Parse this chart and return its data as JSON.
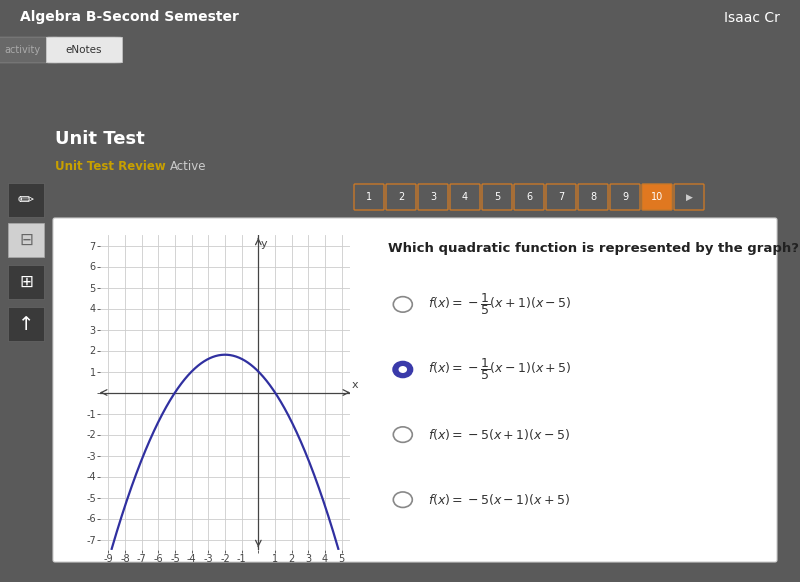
{
  "header_bg": "#4a0080",
  "header_text": "Algebra B-Second Semester",
  "header_right_text": "Isaac Cr",
  "header_text_color": "#ffffff",
  "tab_bg": "#5c5c5c",
  "tab_active_bg": "#e8e8e8",
  "tab_text1": "activity",
  "tab_text2": "eNotes",
  "body_bg": "#5a5a5a",
  "panel_bg": "#ffffff",
  "panel_border": "#cccccc",
  "title_text": "Unit Test",
  "subtitle_text": "Unit Test Review",
  "subtitle_color": "#c8a000",
  "active_text": "Active",
  "active_color": "#cccccc",
  "page_numbers": [
    "1",
    "2",
    "3",
    "4",
    "5",
    "6",
    "7",
    "8",
    "9",
    "10"
  ],
  "active_page": "10",
  "page_btn_border": "#c87828",
  "page_btn_active_bg": "#e07820",
  "page_btn_bg": "#5a5a5a",
  "page_btn_text_color": "#cccccc",
  "question_text": "Which quadratic function is represented by the graph?",
  "selected_option": 1,
  "curve_color": "#3030a0",
  "curve_linewidth": 1.6,
  "xlim": [
    -9.5,
    5.5
  ],
  "ylim": [
    -7.5,
    7.5
  ],
  "xticks": [
    -9,
    -8,
    -7,
    -6,
    -5,
    -4,
    -3,
    -2,
    -1,
    0,
    1,
    2,
    3,
    4,
    5
  ],
  "yticks": [
    -7,
    -6,
    -5,
    -4,
    -3,
    -2,
    -1,
    0,
    1,
    2,
    3,
    4,
    5,
    6,
    7
  ],
  "grid_color": "#cccccc",
  "axis_color": "#444444",
  "tick_label_color": "#444444",
  "tick_fontsize": 7.0,
  "left_icons_bg": "#555555",
  "eraser_bg": "#d0d0d0"
}
